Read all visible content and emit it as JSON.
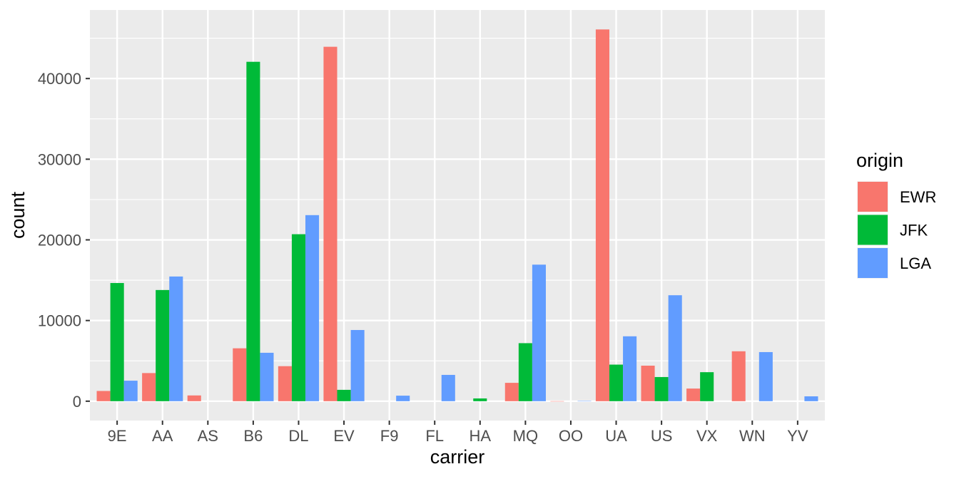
{
  "chart_data": {
    "type": "bar",
    "title": "",
    "xlabel": "carrier",
    "ylabel": "count",
    "ylim": [
      -2400,
      48500
    ],
    "yticks": [
      0,
      10000,
      20000,
      30000,
      40000
    ],
    "grid": true,
    "legend_position": "right",
    "legend_title": "origin",
    "categories": [
      "9E",
      "AA",
      "AS",
      "B6",
      "DL",
      "EV",
      "F9",
      "FL",
      "HA",
      "MQ",
      "OO",
      "UA",
      "US",
      "VX",
      "WN",
      "YV"
    ],
    "series": [
      {
        "name": "EWR",
        "color": "#F8766D",
        "values": [
          1268,
          3487,
          714,
          6557,
          4342,
          43939,
          0,
          0,
          0,
          2276,
          6,
          46087,
          4405,
          1566,
          6188,
          0
        ]
      },
      {
        "name": "JFK",
        "color": "#00BA38",
        "values": [
          14651,
          13783,
          0,
          42076,
          20701,
          1408,
          0,
          0,
          342,
          7193,
          0,
          4534,
          2995,
          3596,
          0,
          0
        ]
      },
      {
        "name": "LGA",
        "color": "#619CFF",
        "values": [
          2541,
          15459,
          0,
          6002,
          23067,
          8826,
          685,
          3260,
          0,
          16928,
          26,
          8044,
          13136,
          0,
          6087,
          601
        ]
      }
    ]
  }
}
